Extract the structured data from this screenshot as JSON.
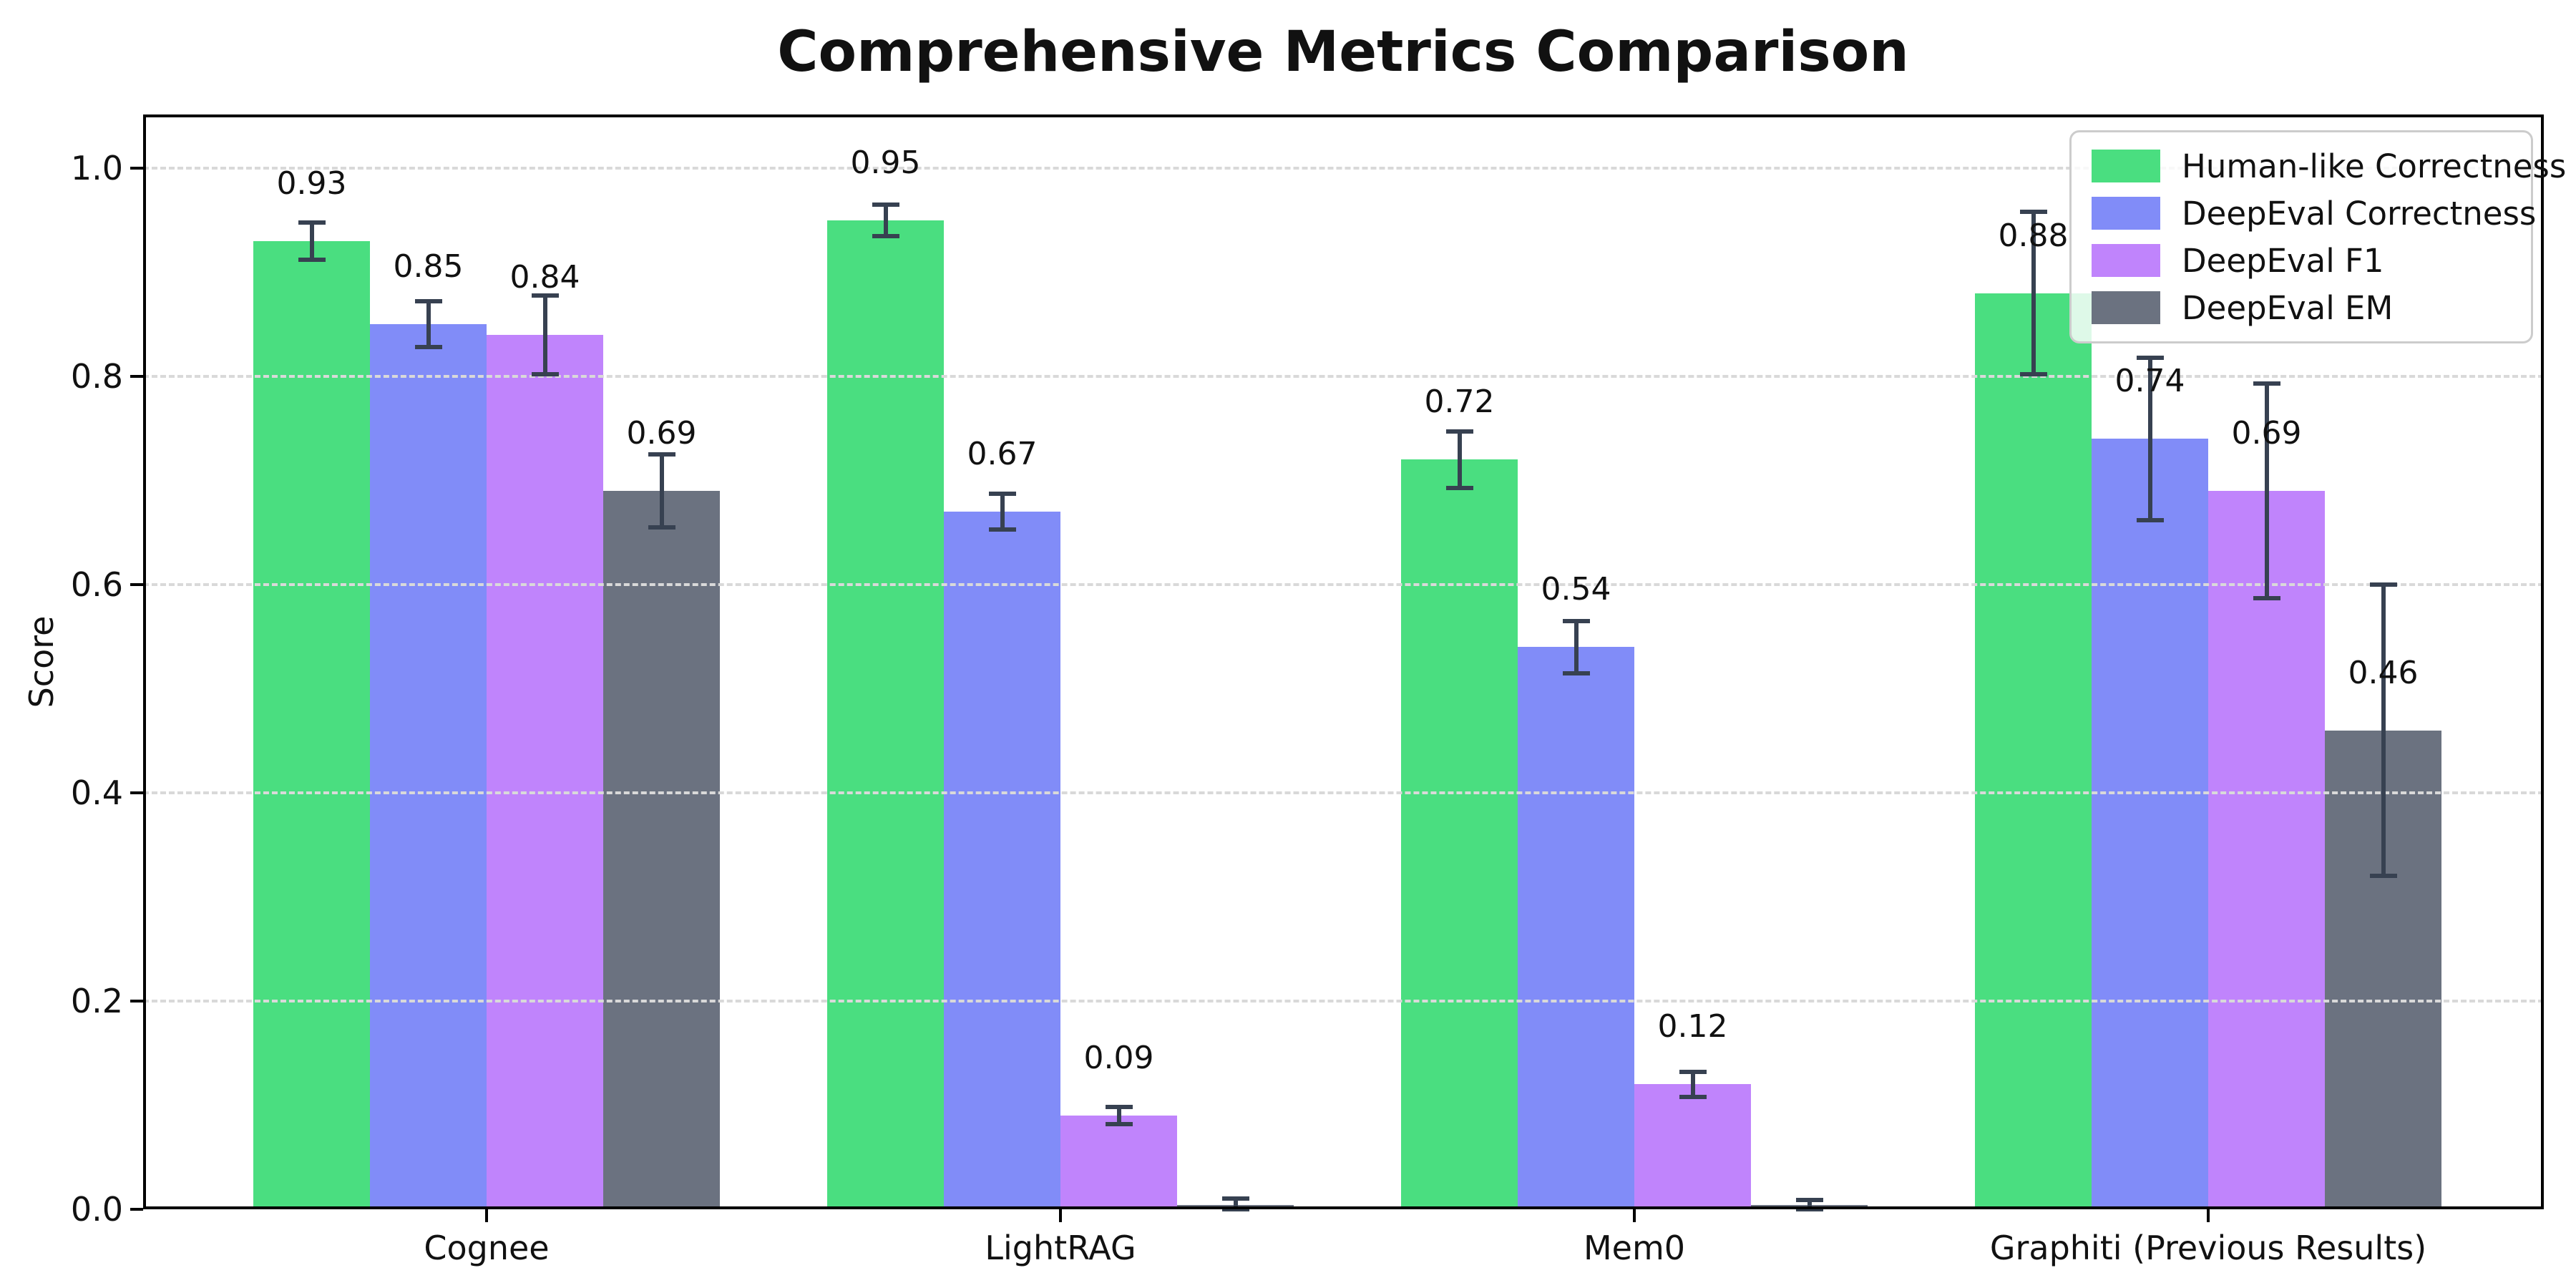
{
  "title": "Comprehensive Metrics Comparison",
  "chart_data": {
    "type": "bar",
    "title": "Comprehensive Metrics Comparison",
    "xlabel": "",
    "ylabel": "Score",
    "categories": [
      "Cognee",
      "LightRAG",
      "Mem0",
      "Graphiti (Previous Results)"
    ],
    "yticks": [
      "0.0",
      "0.2",
      "0.4",
      "0.6",
      "0.8",
      "1.0"
    ],
    "ytick_values": [
      0.0,
      0.2,
      0.4,
      0.6,
      0.8,
      1.0
    ],
    "ylim": [
      0.0,
      1.05
    ],
    "grid": "horizontal-dashed",
    "grid_color": "#d9d9d9",
    "legend_position": "upper right",
    "error_bar_color": "#374151",
    "series": [
      {
        "name": "Human-like Correctness",
        "color": "#4ade80",
        "values": [
          0.93,
          0.95,
          0.72,
          0.88
        ],
        "errors": [
          0.018,
          0.015,
          0.027,
          0.078
        ],
        "labels": [
          "0.93",
          "0.95",
          "0.72",
          "0.88"
        ]
      },
      {
        "name": "DeepEval Correctness",
        "color": "#818cf8",
        "values": [
          0.85,
          0.67,
          0.54,
          0.74
        ],
        "errors": [
          0.022,
          0.017,
          0.025,
          0.078
        ],
        "labels": [
          "0.85",
          "0.67",
          "0.54",
          "0.74"
        ]
      },
      {
        "name": "DeepEval F1",
        "color": "#c084fc",
        "values": [
          0.84,
          0.09,
          0.12,
          0.69
        ],
        "errors": [
          0.038,
          0.008,
          0.012,
          0.103
        ],
        "labels": [
          "0.84",
          "0.09",
          "0.12",
          "0.69"
        ]
      },
      {
        "name": "DeepEval EM",
        "color": "#6b7280",
        "values": [
          0.69,
          0.004,
          0.004,
          0.46
        ],
        "errors": [
          0.035,
          0.006,
          0.005,
          0.14
        ],
        "labels": [
          "0.69",
          null,
          null,
          "0.46"
        ]
      }
    ]
  }
}
